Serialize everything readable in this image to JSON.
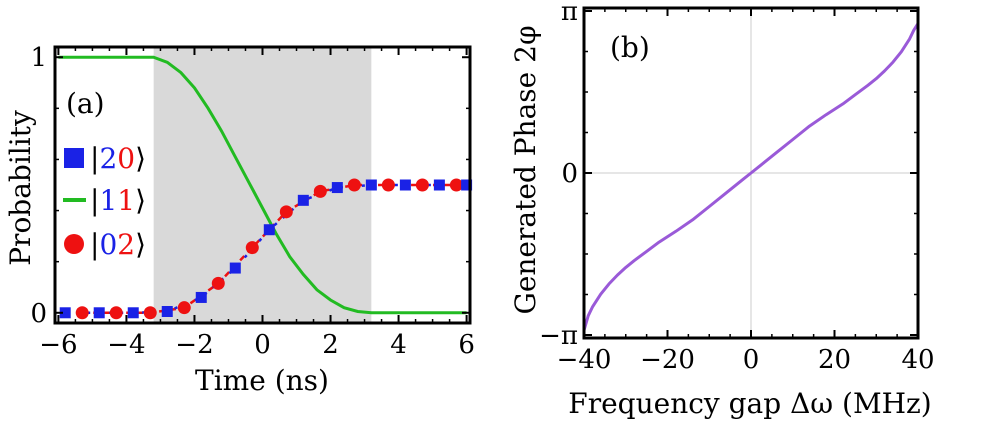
{
  "chart_data": [
    {
      "panel": "(a)",
      "type": "line",
      "xlabel": "Time (ns)",
      "ylabel": "Probability",
      "xlim": [
        -6.1,
        6.1
      ],
      "ylim": [
        -0.04,
        1.04
      ],
      "x_ticks": [
        -6,
        -4,
        -2,
        0,
        2,
        4,
        6
      ],
      "x_tick_labels": [
        "−6",
        "−4",
        "−2",
        "0",
        "2",
        "4",
        "6"
      ],
      "y_ticks": [
        0,
        1
      ],
      "y_tick_labels": [
        "0",
        "1"
      ],
      "shaded_region": [
        -3.2,
        3.2
      ],
      "series": [
        {
          "name": "|11⟩",
          "style": "solid-line",
          "color": "#22bb22",
          "x": [
            -6,
            -5,
            -4,
            -3.2,
            -2.8,
            -2.4,
            -2,
            -1.6,
            -1.2,
            -0.8,
            -0.4,
            0,
            0.4,
            0.8,
            1.2,
            1.6,
            2,
            2.4,
            2.8,
            3.2,
            4,
            5,
            6
          ],
          "values": [
            1,
            1,
            1,
            1,
            0.98,
            0.94,
            0.88,
            0.8,
            0.71,
            0.61,
            0.51,
            0.41,
            0.31,
            0.22,
            0.15,
            0.09,
            0.05,
            0.02,
            0.005,
            0,
            0,
            0,
            0
          ]
        },
        {
          "name": "|20⟩",
          "style": "square-markers",
          "color": "#1a22e6",
          "x": [
            -5.8,
            -4.8,
            -3.8,
            -2.8,
            -1.8,
            -0.8,
            0.2,
            1.2,
            2.2,
            3.2,
            4.2,
            5.2,
            6
          ],
          "values": [
            0,
            0,
            0,
            0.005,
            0.06,
            0.175,
            0.325,
            0.44,
            0.49,
            0.5,
            0.5,
            0.5,
            0.5
          ]
        },
        {
          "name": "|02⟩",
          "style": "circle-markers",
          "color": "#ee1111",
          "x": [
            -5.3,
            -4.3,
            -3.3,
            -2.3,
            -1.3,
            -0.3,
            0.7,
            1.7,
            2.7,
            3.7,
            4.7,
            5.7
          ],
          "values": [
            0,
            0,
            0,
            0.02,
            0.115,
            0.255,
            0.395,
            0.475,
            0.5,
            0.5,
            0.5,
            0.5
          ]
        }
      ],
      "legend": [
        {
          "symbol": "square",
          "color": "#1a22e6",
          "bra": "|",
          "d1": "2",
          "d1_color": "#1a22e6",
          "d2": "0",
          "d2_color": "#ee1111",
          "ket": "⟩"
        },
        {
          "symbol": "line",
          "color": "#22bb22",
          "bra": "|",
          "d1": "1",
          "d1_color": "#1a22e6",
          "d2": "1",
          "d2_color": "#ee1111",
          "ket": "⟩"
        },
        {
          "symbol": "circle",
          "color": "#ee1111",
          "bra": "|",
          "d1": "0",
          "d1_color": "#1a22e6",
          "d2": "2",
          "d2_color": "#ee1111",
          "ket": "⟩"
        }
      ],
      "legend_placement": "left"
    },
    {
      "panel": "(b)",
      "type": "line",
      "xlabel": "Frequency gap Δω (MHz)",
      "ylabel": "Generated Phase 2φ",
      "xlim": [
        -40,
        40
      ],
      "ylim": [
        -3.2,
        3.2
      ],
      "x_ticks": [
        -40,
        -20,
        0,
        20,
        40
      ],
      "x_tick_labels": [
        "−40",
        "−20",
        "0",
        "20",
        "40"
      ],
      "y_ticks": [
        -3.14159,
        0,
        3.14159
      ],
      "y_tick_labels": [
        "−π",
        "0",
        "π"
      ],
      "grid_lines": {
        "x": [
          0
        ],
        "y": [
          0
        ]
      },
      "series": [
        {
          "name": "",
          "style": "solid-line",
          "color": "#9a5ad8",
          "x": [
            -40,
            -39,
            -38,
            -36,
            -34,
            -32,
            -30,
            -28,
            -25,
            -22,
            -18,
            -14,
            -10,
            -6,
            -2,
            0,
            2,
            6,
            10,
            14,
            18,
            22,
            25,
            28,
            30,
            32,
            34,
            36,
            38,
            39,
            40
          ],
          "values": [
            -3.05,
            -2.77,
            -2.6,
            -2.35,
            -2.15,
            -1.98,
            -1.83,
            -1.7,
            -1.52,
            -1.34,
            -1.13,
            -0.91,
            -0.65,
            -0.39,
            -0.13,
            0,
            0.13,
            0.39,
            0.65,
            0.91,
            1.13,
            1.34,
            1.52,
            1.7,
            1.83,
            1.98,
            2.15,
            2.35,
            2.6,
            2.77,
            2.9
          ]
        }
      ]
    }
  ]
}
